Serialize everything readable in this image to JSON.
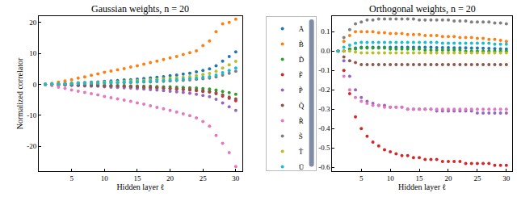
{
  "chart_data": [
    {
      "type": "scatter",
      "title": "Gaussian weights, n = 20",
      "xlabel": "Hidden layer ℓ",
      "ylabel": "Normalized correlator",
      "x": [
        1,
        2,
        3,
        4,
        5,
        6,
        7,
        8,
        9,
        10,
        11,
        12,
        13,
        14,
        15,
        16,
        17,
        18,
        19,
        20,
        21,
        22,
        23,
        24,
        25,
        26,
        27,
        28,
        29,
        30
      ],
      "xlim": [
        0,
        31
      ],
      "xticks": [
        5,
        10,
        15,
        20,
        25,
        30
      ],
      "ylim": [
        -28,
        22
      ],
      "yticks": [
        -20,
        -10,
        0,
        10,
        20
      ],
      "marker": "circle",
      "series": [
        {
          "name": "Ã",
          "color": "#1f77b4",
          "values": [
            0,
            0.1,
            0.2,
            0.3,
            0.4,
            0.5,
            0.6,
            0.7,
            0.8,
            1.0,
            1.1,
            1.2,
            1.4,
            1.5,
            1.7,
            1.9,
            2.1,
            2.3,
            2.5,
            2.8,
            3.0,
            3.3,
            3.6,
            4.0,
            4.5,
            5.0,
            6.0,
            7.5,
            9.0,
            10.5
          ]
        },
        {
          "name": "B̃",
          "color": "#ff7f0e",
          "values": [
            0,
            0.3,
            0.7,
            1.1,
            1.5,
            2.0,
            2.4,
            2.9,
            3.4,
            3.9,
            4.3,
            4.7,
            5.1,
            5.6,
            6.0,
            6.5,
            7.0,
            7.5,
            8.0,
            8.5,
            9.0,
            9.6,
            10.2,
            10.8,
            12.5,
            14.0,
            17.0,
            19.5,
            20.0,
            21.0
          ]
        },
        {
          "name": "D̃",
          "color": "#2ca02c",
          "values": [
            0,
            0,
            -0.1,
            -0.1,
            -0.1,
            -0.2,
            -0.2,
            -0.2,
            -0.2,
            -0.3,
            -0.3,
            -0.4,
            -0.4,
            -0.5,
            -0.5,
            -0.6,
            -0.6,
            -0.7,
            -0.8,
            -0.8,
            -0.9,
            -1.0,
            -1.1,
            -1.2,
            -1.4,
            -1.5,
            -1.8,
            -2.3,
            -2.7,
            -3.2
          ]
        },
        {
          "name": "F̃",
          "color": "#d62728",
          "values": [
            0,
            -0.1,
            -0.1,
            -0.2,
            -0.2,
            -0.3,
            -0.3,
            -0.4,
            -0.4,
            -0.5,
            -0.6,
            -0.6,
            -0.7,
            -0.8,
            -0.9,
            -1.0,
            -1.1,
            -1.2,
            -1.3,
            -1.4,
            -1.5,
            -1.7,
            -1.8,
            -2.0,
            -2.3,
            -2.5,
            -3.0,
            -3.8,
            -4.5,
            -5.3
          ]
        },
        {
          "name": "P̃",
          "color": "#9467bd",
          "values": [
            0,
            -0.1,
            -0.2,
            -0.2,
            -0.3,
            -0.4,
            -0.5,
            -0.6,
            -0.6,
            -0.8,
            -0.9,
            -1.0,
            -1.1,
            -1.2,
            -1.4,
            -1.5,
            -1.7,
            -1.8,
            -2.0,
            -2.2,
            -2.4,
            -2.6,
            -2.9,
            -3.2,
            -3.6,
            -4.0,
            -4.8,
            -6.0,
            -7.2,
            -8.4
          ]
        },
        {
          "name": "Q̃",
          "color": "#8c564b",
          "values": [
            0,
            0,
            -0.1,
            -0.1,
            -0.2,
            -0.2,
            -0.3,
            -0.3,
            -0.4,
            -0.5,
            -0.5,
            -0.5,
            -0.6,
            -0.7,
            -0.8,
            -0.9,
            -0.9,
            -1.0,
            -1.1,
            -1.3,
            -1.4,
            -1.5,
            -1.6,
            -1.8,
            -2.0,
            -2.3,
            -2.7,
            -3.4,
            -4.1,
            -4.7
          ]
        },
        {
          "name": "R̃",
          "color": "#e377c2",
          "values": [
            0,
            -0.4,
            -0.9,
            -1.3,
            -1.8,
            -2.2,
            -2.6,
            -3.0,
            -3.4,
            -3.9,
            -4.3,
            -4.7,
            -5.1,
            -5.5,
            -6.0,
            -6.4,
            -6.9,
            -7.4,
            -7.9,
            -8.4,
            -8.9,
            -9.5,
            -10.1,
            -10.8,
            -12.0,
            -13.5,
            -16.5,
            -19.0,
            -22.0,
            -26.5
          ]
        },
        {
          "name": "S̃",
          "color": "#7f7f7f",
          "values": [
            0,
            0,
            0.1,
            0.1,
            0.2,
            0.2,
            0.2,
            0.3,
            0.3,
            0.4,
            0.4,
            0.5,
            0.6,
            0.6,
            0.7,
            0.8,
            0.8,
            0.9,
            1.0,
            1.1,
            1.2,
            1.3,
            1.4,
            1.6,
            1.8,
            2.0,
            2.4,
            3.0,
            3.6,
            4.2
          ]
        },
        {
          "name": "T̃",
          "color": "#bcbd22",
          "values": [
            0,
            0.1,
            0.1,
            0.2,
            0.3,
            0.4,
            0.4,
            0.5,
            0.6,
            0.7,
            0.8,
            0.8,
            1.0,
            1.1,
            1.2,
            1.3,
            1.5,
            1.6,
            1.8,
            2.0,
            2.1,
            2.3,
            2.5,
            2.8,
            3.2,
            3.5,
            4.2,
            5.3,
            6.3,
            7.4
          ]
        },
        {
          "name": "Ũ",
          "color": "#17becf",
          "values": [
            0,
            0.1,
            0.1,
            0.2,
            0.2,
            0.3,
            0.3,
            0.4,
            0.4,
            0.5,
            0.6,
            0.6,
            0.7,
            0.8,
            0.9,
            1.0,
            1.1,
            1.2,
            1.3,
            1.4,
            1.5,
            1.7,
            1.8,
            2.0,
            2.3,
            2.5,
            3.0,
            3.8,
            4.5,
            5.3
          ]
        }
      ]
    },
    {
      "type": "scatter",
      "title": "Orthogonal weights, n = 20",
      "xlabel": "Hidden layer ℓ",
      "x": [
        1,
        2,
        3,
        4,
        5,
        6,
        7,
        8,
        9,
        10,
        11,
        12,
        13,
        14,
        15,
        16,
        17,
        18,
        19,
        20,
        21,
        22,
        23,
        24,
        25,
        26,
        27,
        28,
        29,
        30
      ],
      "xlim": [
        0,
        31
      ],
      "xticks": [
        5,
        10,
        15,
        20,
        25,
        30
      ],
      "ylim": [
        -0.62,
        0.18
      ],
      "yticks": [
        -0.6,
        -0.5,
        -0.4,
        -0.3,
        -0.2,
        -0.1,
        {
          "value": 0,
          "label": "0.0"
        },
        0.1
      ],
      "marker": "circle",
      "series": [
        {
          "name": "Ã",
          "color": "#1f77b4",
          "values": [
            0,
            0,
            0.01,
            0.015,
            0.02,
            0.02,
            0.02,
            0.02,
            0.02,
            0.02,
            0.02,
            0.02,
            0.02,
            0.02,
            0.02,
            0.02,
            0.02,
            0.018,
            0.018,
            0.018,
            0.016,
            0.016,
            0.016,
            0.015,
            0.015,
            0.014,
            0.013,
            0.012,
            0.011,
            0.01
          ]
        },
        {
          "name": "B̃",
          "color": "#ff7f0e",
          "values": [
            0,
            0.05,
            0.08,
            0.1,
            0.1,
            0.1,
            0.1,
            0.095,
            0.095,
            0.09,
            0.09,
            0.09,
            0.085,
            0.085,
            0.085,
            0.08,
            0.08,
            0.08,
            0.075,
            0.075,
            0.075,
            0.07,
            0.07,
            0.07,
            0.065,
            0.065,
            0.06,
            0.06,
            0.055,
            0.05
          ]
        },
        {
          "name": "D̃",
          "color": "#2ca02c",
          "values": [
            0,
            0,
            0.01,
            0.01,
            0.015,
            0.015,
            0.015,
            0.015,
            0.015,
            0.01,
            0.01,
            0.01,
            0.01,
            0.01,
            0.01,
            0.005,
            0.005,
            0.005,
            0.005,
            0.005,
            0.005,
            0.005,
            0,
            0,
            0,
            0,
            0,
            0,
            0,
            0
          ]
        },
        {
          "name": "F̃",
          "color": "#d62728",
          "values": [
            0,
            -0.1,
            -0.22,
            -0.34,
            -0.4,
            -0.44,
            -0.47,
            -0.49,
            -0.51,
            -0.52,
            -0.53,
            -0.54,
            -0.54,
            -0.55,
            -0.55,
            -0.56,
            -0.56,
            -0.56,
            -0.57,
            -0.57,
            -0.57,
            -0.57,
            -0.58,
            -0.58,
            -0.58,
            -0.58,
            -0.58,
            -0.59,
            -0.59,
            -0.59
          ]
        },
        {
          "name": "P̃",
          "color": "#9467bd",
          "values": [
            0,
            -0.05,
            -0.13,
            -0.2,
            -0.24,
            -0.26,
            -0.27,
            -0.28,
            -0.28,
            -0.29,
            -0.29,
            -0.29,
            -0.3,
            -0.3,
            -0.3,
            -0.3,
            -0.3,
            -0.31,
            -0.31,
            -0.31,
            -0.31,
            -0.31,
            -0.31,
            -0.31,
            -0.32,
            -0.32,
            -0.32,
            -0.32,
            -0.32,
            -0.32
          ]
        },
        {
          "name": "Q̃",
          "color": "#8c564b",
          "values": [
            0,
            -0.03,
            -0.05,
            -0.06,
            -0.07,
            -0.07,
            -0.07,
            -0.07,
            -0.07,
            -0.07,
            -0.07,
            -0.07,
            -0.07,
            -0.07,
            -0.07,
            -0.07,
            -0.07,
            -0.07,
            -0.07,
            -0.07,
            -0.07,
            -0.07,
            -0.07,
            -0.07,
            -0.07,
            -0.07,
            -0.07,
            -0.07,
            -0.07,
            -0.07
          ]
        },
        {
          "name": "R̃",
          "color": "#e377c2",
          "values": [
            0,
            -0.13,
            -0.2,
            -0.24,
            -0.26,
            -0.27,
            -0.28,
            -0.28,
            -0.29,
            -0.29,
            -0.29,
            -0.29,
            -0.3,
            -0.3,
            -0.3,
            -0.3,
            -0.3,
            -0.3,
            -0.3,
            -0.3,
            -0.3,
            -0.3,
            -0.3,
            -0.3,
            -0.3,
            -0.3,
            -0.3,
            -0.3,
            -0.3,
            -0.3
          ]
        },
        {
          "name": "S̃",
          "color": "#7f7f7f",
          "values": [
            0,
            0.07,
            0.11,
            0.14,
            0.15,
            0.16,
            0.16,
            0.165,
            0.165,
            0.165,
            0.165,
            0.165,
            0.165,
            0.165,
            0.16,
            0.16,
            0.16,
            0.16,
            0.16,
            0.16,
            0.155,
            0.155,
            0.155,
            0.15,
            0.15,
            0.15,
            0.15,
            0.145,
            0.145,
            0.14
          ]
        },
        {
          "name": "T̃",
          "color": "#bcbd22",
          "values": [
            0,
            0,
            0,
            -0.005,
            -0.01,
            -0.01,
            -0.01,
            -0.01,
            -0.01,
            -0.01,
            -0.01,
            -0.01,
            -0.01,
            -0.01,
            -0.01,
            -0.01,
            -0.01,
            -0.01,
            -0.01,
            -0.01,
            -0.01,
            -0.01,
            -0.01,
            -0.01,
            -0.01,
            -0.01,
            -0.01,
            -0.01,
            -0.01,
            -0.01
          ]
        },
        {
          "name": "Ũ",
          "color": "#17becf",
          "values": [
            0,
            0.02,
            0.03,
            0.04,
            0.045,
            0.045,
            0.045,
            0.045,
            0.045,
            0.045,
            0.045,
            0.045,
            0.045,
            0.045,
            0.045,
            0.045,
            0.045,
            0.045,
            0.04,
            0.04,
            0.04,
            0.04,
            0.04,
            0.04,
            0.04,
            0.04,
            0.04,
            0.035,
            0.035,
            0.035
          ]
        }
      ]
    }
  ]
}
